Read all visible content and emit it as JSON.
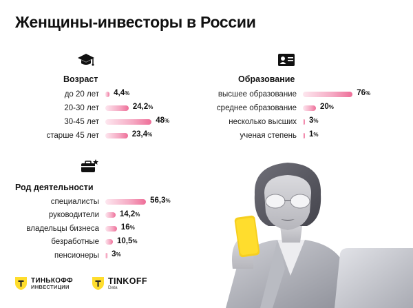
{
  "title": "Женщины-инвесторы в России",
  "sections": {
    "age": {
      "title": "Возраст",
      "icon": "graduation-cap-icon",
      "rows": [
        {
          "label": "до 20 лет",
          "value": 4.4,
          "display": "4,4"
        },
        {
          "label": "20-30 лет",
          "value": 24.2,
          "display": "24,2"
        },
        {
          "label": "30-45 лет",
          "value": 48,
          "display": "48"
        },
        {
          "label": "старше 45 лет",
          "value": 23.4,
          "display": "23,4"
        }
      ]
    },
    "education": {
      "title": "Образование",
      "icon": "id-card-icon",
      "rows": [
        {
          "label": "высшее образование",
          "value": 76,
          "display": "76"
        },
        {
          "label": "среднее образование",
          "value": 20,
          "display": "20"
        },
        {
          "label": "несколько высших",
          "value": 3,
          "display": "3"
        },
        {
          "label": "ученая степень",
          "value": 1,
          "display": "1"
        }
      ]
    },
    "occupation": {
      "title": "Род деятельности",
      "icon": "briefcase-icon",
      "rows": [
        {
          "label": "специалисты",
          "value": 56.3,
          "display": "56,3"
        },
        {
          "label": "руководители",
          "value": 14.2,
          "display": "14,2"
        },
        {
          "label": "владельцы бизнеса",
          "value": 16,
          "display": "16"
        },
        {
          "label": "безработные",
          "value": 10.5,
          "display": "10,5"
        },
        {
          "label": "пенсионеры",
          "value": 3,
          "display": "3"
        }
      ]
    }
  },
  "percent_sign": "%",
  "logos": {
    "invest_main": "ТИНЬКОФФ",
    "invest_sub": "ИНВЕСТИЦИИ",
    "data_main": "TINKOFF",
    "data_sub": "Data"
  },
  "colors": {
    "bar_start": "#fde7ef",
    "bar_end": "#ee6e98",
    "brand_yellow": "#ffdd2d"
  },
  "chart_data": [
    {
      "type": "bar",
      "title": "Возраст",
      "categories": [
        "до 20 лет",
        "20-30 лет",
        "30-45 лет",
        "старше 45 лет"
      ],
      "values": [
        4.4,
        24.2,
        48,
        23.4
      ]
    },
    {
      "type": "bar",
      "title": "Образование",
      "categories": [
        "высшее образование",
        "среднее образование",
        "несколько высших",
        "ученая степень"
      ],
      "values": [
        76,
        20,
        3,
        1
      ]
    },
    {
      "type": "bar",
      "title": "Род деятельности",
      "categories": [
        "специалисты",
        "руководители",
        "владельцы бизнеса",
        "безработные",
        "пенсионеры"
      ],
      "values": [
        56.3,
        14.2,
        16,
        10.5,
        3
      ]
    }
  ]
}
